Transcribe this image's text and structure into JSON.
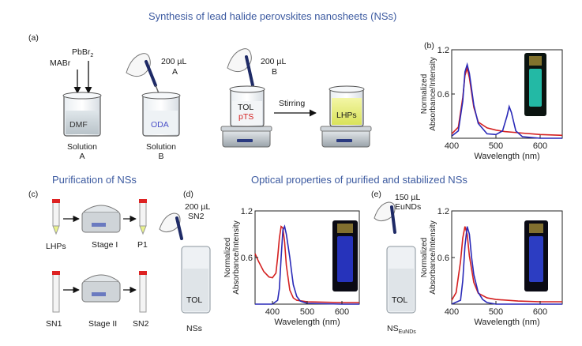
{
  "titles": {
    "synthesis": "Synthesis of lead halide perovskites nanosheets (NSs)",
    "purification": "Purification of NSs",
    "optical": "Optical properties of purified and stabilized NSs"
  },
  "panel_letters": {
    "a": "(a)",
    "b": "(b)",
    "c": "(c)",
    "d": "(d)",
    "e": "(e)"
  },
  "panel_a": {
    "reagent1": "MABr",
    "reagent2_main": "PbBr",
    "reagent2_sub": "2",
    "beaker1_label": "DMF",
    "solution_a_line1": "Solution",
    "solution_a_line2": "A",
    "vol1": "200 µL",
    "vol1_target": "A",
    "beaker2_label": "ODA",
    "solution_b_line1": "Solution",
    "solution_b_line2": "B",
    "vol2": "200 µL",
    "vol2_target": "B",
    "beaker3_line1": "TOL",
    "beaker3_line2": "pTS",
    "stirring": "Stirring",
    "beaker4_label": "LHPs"
  },
  "panel_c": {
    "tube_lhps": "LHPs",
    "stage1": "Stage I",
    "tube_p1": "P1",
    "tube_sn1": "SN1",
    "stage2": "Stage II",
    "tube_sn2": "SN2"
  },
  "panel_d": {
    "vol": "200 µL",
    "reagent": "SN2",
    "vial_label": "TOL",
    "caption": "NSs"
  },
  "panel_e": {
    "vol": "150 µL",
    "reagent": "EuNDs",
    "vial_label": "TOL",
    "caption_main": "NS",
    "caption_sub": "EuNDs"
  },
  "chart_data": [
    {
      "panel": "b",
      "type": "line",
      "xlabel": "Wavelength (nm)",
      "ylabel": "Normalized Absorbance/Intensity",
      "xlim": [
        400,
        650
      ],
      "ylim": [
        0,
        1.2
      ],
      "xticks": [
        "400",
        "500",
        "600"
      ],
      "yticks": [
        "0.6",
        "1.2"
      ],
      "series": [
        {
          "color": "#d42020",
          "x": [
            400,
            415,
            425,
            430,
            435,
            440,
            450,
            460,
            480,
            500,
            520,
            540,
            560,
            600,
            650
          ],
          "y": [
            0.06,
            0.15,
            0.55,
            0.85,
            0.95,
            0.82,
            0.42,
            0.22,
            0.14,
            0.11,
            0.09,
            0.08,
            0.07,
            0.05,
            0.04
          ]
        },
        {
          "color": "#2a2ab8",
          "x": [
            400,
            415,
            425,
            430,
            435,
            440,
            450,
            460,
            480,
            500,
            515,
            525,
            530,
            535,
            545,
            560,
            600,
            650
          ],
          "y": [
            0.03,
            0.1,
            0.5,
            0.9,
            1.0,
            0.88,
            0.45,
            0.2,
            0.06,
            0.05,
            0.1,
            0.3,
            0.43,
            0.35,
            0.1,
            0.02,
            0.0,
            0.0
          ]
        }
      ]
    },
    {
      "panel": "d",
      "type": "line",
      "xlabel": "Wavelength (nm)",
      "ylabel": "Normalized Absorbance/Intensity",
      "xlim": [
        350,
        650
      ],
      "ylim": [
        0,
        1.2
      ],
      "xticks": [
        "400",
        "500",
        "600"
      ],
      "yticks": [
        "0.6",
        "1.2"
      ],
      "series": [
        {
          "color": "#d42020",
          "x": [
            350,
            360,
            375,
            390,
            400,
            410,
            415,
            420,
            425,
            430,
            435,
            440,
            450,
            460,
            470,
            500,
            600,
            650
          ],
          "y": [
            0.65,
            0.55,
            0.42,
            0.35,
            0.34,
            0.4,
            0.6,
            0.85,
            1.0,
            0.98,
            0.8,
            0.5,
            0.18,
            0.08,
            0.05,
            0.03,
            0.02,
            0.02
          ]
        },
        {
          "color": "#2a2ab8",
          "x": [
            350,
            400,
            415,
            420,
            425,
            430,
            435,
            440,
            445,
            450,
            455,
            460,
            470,
            480,
            500,
            600,
            650
          ],
          "y": [
            0.0,
            0.0,
            0.05,
            0.2,
            0.6,
            0.95,
            1.0,
            0.9,
            0.75,
            0.6,
            0.42,
            0.25,
            0.1,
            0.04,
            0.01,
            0.0,
            0.0
          ]
        }
      ]
    },
    {
      "panel": "e",
      "type": "line",
      "xlabel": "Wavelength (nm)",
      "ylabel": "Normalized Absorbance/Intensity",
      "xlim": [
        400,
        650
      ],
      "ylim": [
        0,
        1.2
      ],
      "xticks": [
        "400",
        "500",
        "600"
      ],
      "yticks": [
        "0.6",
        "1.2"
      ],
      "series": [
        {
          "color": "#d42020",
          "x": [
            400,
            410,
            420,
            425,
            430,
            435,
            440,
            450,
            460,
            480,
            500,
            550,
            600,
            650
          ],
          "y": [
            0.05,
            0.15,
            0.55,
            0.85,
            1.0,
            0.9,
            0.62,
            0.28,
            0.14,
            0.08,
            0.06,
            0.04,
            0.03,
            0.03
          ]
        },
        {
          "color": "#2a2ab8",
          "x": [
            400,
            420,
            425,
            430,
            435,
            440,
            445,
            450,
            460,
            470,
            480,
            500,
            600,
            650
          ],
          "y": [
            0.0,
            0.05,
            0.3,
            0.75,
            1.0,
            0.9,
            0.6,
            0.38,
            0.15,
            0.06,
            0.02,
            0.0,
            0.0,
            0.0
          ]
        }
      ]
    }
  ]
}
